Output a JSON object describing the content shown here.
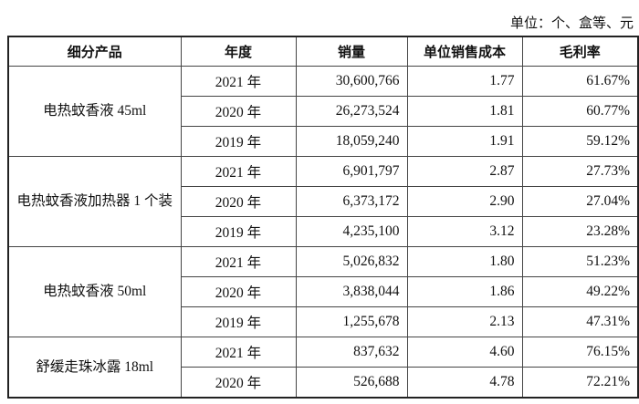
{
  "unit_label": "单位：个、盒等、元",
  "table": {
    "headers": [
      "细分产品",
      "年度",
      "销量",
      "单位销售成本",
      "毛利率"
    ],
    "groups": [
      {
        "product": "电热蚊香液 45ml",
        "rows": [
          {
            "year": "2021 年",
            "sales": "30,600,766",
            "unit_cost": "1.77",
            "margin": "61.67%"
          },
          {
            "year": "2020 年",
            "sales": "26,273,524",
            "unit_cost": "1.81",
            "margin": "60.77%"
          },
          {
            "year": "2019 年",
            "sales": "18,059,240",
            "unit_cost": "1.91",
            "margin": "59.12%"
          }
        ]
      },
      {
        "product": "电热蚊香液加热器 1 个装",
        "rows": [
          {
            "year": "2021 年",
            "sales": "6,901,797",
            "unit_cost": "2.87",
            "margin": "27.73%"
          },
          {
            "year": "2020 年",
            "sales": "6,373,172",
            "unit_cost": "2.90",
            "margin": "27.04%"
          },
          {
            "year": "2019 年",
            "sales": "4,235,100",
            "unit_cost": "3.12",
            "margin": "23.28%"
          }
        ]
      },
      {
        "product": "电热蚊香液 50ml",
        "rows": [
          {
            "year": "2021 年",
            "sales": "5,026,832",
            "unit_cost": "1.80",
            "margin": "51.23%"
          },
          {
            "year": "2020 年",
            "sales": "3,838,044",
            "unit_cost": "1.86",
            "margin": "49.22%"
          },
          {
            "year": "2019 年",
            "sales": "1,255,678",
            "unit_cost": "2.13",
            "margin": "47.31%"
          }
        ]
      },
      {
        "product": "舒缓走珠冰露 18ml",
        "rows": [
          {
            "year": "2021 年",
            "sales": "837,632",
            "unit_cost": "4.60",
            "margin": "76.15%"
          },
          {
            "year": "2020 年",
            "sales": "526,688",
            "unit_cost": "4.78",
            "margin": "72.21%"
          }
        ]
      }
    ]
  }
}
